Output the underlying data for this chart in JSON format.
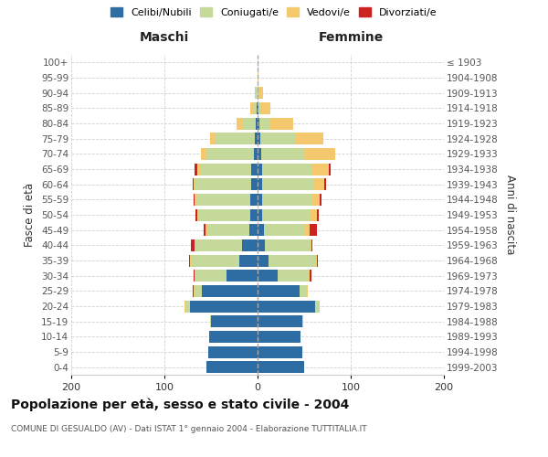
{
  "age_groups": [
    "0-4",
    "5-9",
    "10-14",
    "15-19",
    "20-24",
    "25-29",
    "30-34",
    "35-39",
    "40-44",
    "45-49",
    "50-54",
    "55-59",
    "60-64",
    "65-69",
    "70-74",
    "75-79",
    "80-84",
    "85-89",
    "90-94",
    "95-99",
    "100+"
  ],
  "birth_years": [
    "1999-2003",
    "1994-1998",
    "1989-1993",
    "1984-1988",
    "1979-1983",
    "1974-1978",
    "1969-1973",
    "1964-1968",
    "1959-1963",
    "1954-1958",
    "1949-1953",
    "1944-1948",
    "1939-1943",
    "1934-1938",
    "1929-1933",
    "1924-1928",
    "1919-1923",
    "1914-1918",
    "1909-1913",
    "1904-1908",
    "≤ 1903"
  ],
  "maschi": {
    "celibi": [
      55,
      53,
      52,
      50,
      73,
      60,
      33,
      20,
      17,
      9,
      8,
      8,
      7,
      7,
      4,
      3,
      2,
      1,
      0,
      0,
      0
    ],
    "coniugati": [
      0,
      0,
      0,
      1,
      4,
      8,
      35,
      52,
      50,
      45,
      55,
      58,
      60,
      55,
      52,
      42,
      14,
      4,
      2,
      0,
      0
    ],
    "vedovi": [
      0,
      0,
      0,
      0,
      1,
      1,
      0,
      1,
      1,
      2,
      2,
      2,
      2,
      3,
      5,
      6,
      7,
      3,
      1,
      0,
      0
    ],
    "divorziati": [
      0,
      0,
      0,
      0,
      0,
      1,
      1,
      1,
      4,
      2,
      2,
      1,
      1,
      3,
      0,
      0,
      0,
      0,
      0,
      0,
      0
    ]
  },
  "femmine": {
    "nubili": [
      50,
      48,
      46,
      48,
      62,
      45,
      22,
      12,
      8,
      7,
      5,
      5,
      5,
      5,
      4,
      3,
      2,
      1,
      0,
      0,
      0
    ],
    "coniugate": [
      0,
      0,
      0,
      1,
      4,
      8,
      33,
      50,
      48,
      44,
      52,
      53,
      55,
      53,
      47,
      38,
      12,
      3,
      1,
      0,
      0
    ],
    "vedove": [
      0,
      0,
      0,
      0,
      1,
      1,
      1,
      2,
      2,
      5,
      7,
      9,
      12,
      18,
      32,
      30,
      24,
      10,
      5,
      1,
      0
    ],
    "divorziate": [
      0,
      0,
      0,
      0,
      0,
      0,
      2,
      1,
      1,
      8,
      2,
      2,
      2,
      2,
      0,
      0,
      0,
      0,
      0,
      0,
      0
    ]
  },
  "colors": {
    "celibi_nubili": "#2e6da4",
    "coniugati": "#c5d99a",
    "vedovi": "#f5c86e",
    "divorziati": "#cc2222"
  },
  "xlim": 200,
  "title": "Popolazione per età, sesso e stato civile - 2004",
  "subtitle": "COMUNE DI GESUALDO (AV) - Dati ISTAT 1° gennaio 2004 - Elaborazione TUTTITALIA.IT",
  "ylabel_left": "Fasce di età",
  "ylabel_right": "Anni di nascita",
  "xlabel_left": "Maschi",
  "xlabel_right": "Femmine",
  "bg_color": "#ffffff",
  "grid_color": "#cccccc"
}
